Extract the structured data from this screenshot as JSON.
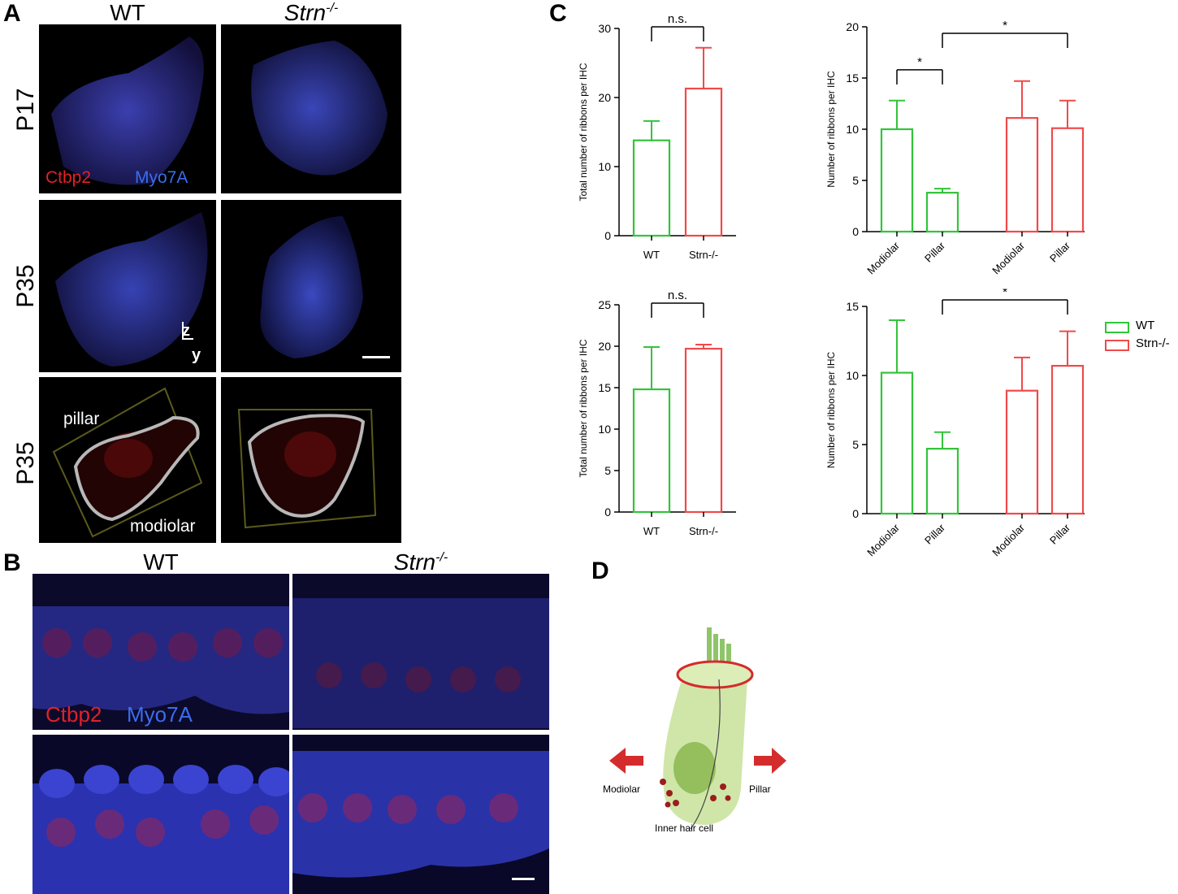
{
  "panels": {
    "a": "A",
    "b": "B",
    "c": "C",
    "d": "D"
  },
  "panelA": {
    "col_wt": "WT",
    "col_strn": "Strn",
    "col_strn_sup": "-/-",
    "rows": [
      "P17",
      "P35",
      "P35"
    ],
    "ctbp2": "Ctbp2",
    "myo7a": "Myo7A",
    "axis_z": "z",
    "axis_y": "y",
    "pillar": "pillar",
    "modiolar": "modiolar"
  },
  "panelB": {
    "col_wt": "WT",
    "col_strn": "Strn",
    "col_strn_sup": "-/-",
    "ctbp2": "Ctbp2",
    "myo7a": "Myo7A"
  },
  "panelD": {
    "modiolar": "Modiolar",
    "pillar": "Pillar",
    "cell": "Inner hair cell"
  },
  "legend": {
    "items": [
      {
        "label": "WT",
        "color": "#33c43a"
      },
      {
        "label": "Strn-/-",
        "color": "#f04a4a"
      }
    ]
  },
  "colors": {
    "wt": "#33c43a",
    "strn": "#f04a4a"
  },
  "chart_data": [
    {
      "type": "bar",
      "id": "c1",
      "ylabel": "Total number of ribbons per IHC",
      "categories": [
        "WT",
        "Strn-/-"
      ],
      "values": [
        13.8,
        21.3
      ],
      "errors": [
        2.8,
        5.9
      ],
      "ylim": [
        0,
        30
      ],
      "yticks": [
        0,
        10,
        20,
        30
      ],
      "series_colors": [
        "#33c43a",
        "#f04a4a"
      ],
      "significance": [
        {
          "from": 0,
          "to": 1,
          "label": "n.s."
        }
      ]
    },
    {
      "type": "bar",
      "id": "c2",
      "ylabel": "Number of ribbons per IHC",
      "categories": [
        "Modiolar",
        "Pillar",
        "Modiolar",
        "Pillar"
      ],
      "values": [
        10.0,
        3.8,
        11.1,
        10.1
      ],
      "errors": [
        2.8,
        0.4,
        3.6,
        2.7
      ],
      "ylim": [
        0,
        20
      ],
      "yticks": [
        0,
        5,
        10,
        15,
        20
      ],
      "series_colors": [
        "#33c43a",
        "#33c43a",
        "#f04a4a",
        "#f04a4a"
      ],
      "significance": [
        {
          "from": 0,
          "to": 1,
          "label": "*"
        },
        {
          "from": 1,
          "to": 3,
          "label": "*"
        }
      ]
    },
    {
      "type": "bar",
      "id": "c3",
      "ylabel": "Total number of ribbons per IHC",
      "categories": [
        "WT",
        "Strn-/-"
      ],
      "values": [
        14.8,
        19.7
      ],
      "errors": [
        5.1,
        0.5
      ],
      "ylim": [
        0,
        25
      ],
      "yticks": [
        0,
        5,
        10,
        15,
        20,
        25
      ],
      "series_colors": [
        "#33c43a",
        "#f04a4a"
      ],
      "significance": [
        {
          "from": 0,
          "to": 1,
          "label": "n.s."
        }
      ]
    },
    {
      "type": "bar",
      "id": "c4",
      "ylabel": "Number of ribbons per IHC",
      "categories": [
        "Modiolar",
        "Pillar",
        "Modiolar",
        "Pillar"
      ],
      "values": [
        10.2,
        4.7,
        8.9,
        10.7
      ],
      "errors": [
        3.8,
        1.2,
        2.4,
        2.5
      ],
      "ylim": [
        0,
        15
      ],
      "yticks": [
        0,
        5,
        10,
        15
      ],
      "series_colors": [
        "#33c43a",
        "#33c43a",
        "#f04a4a",
        "#f04a4a"
      ],
      "significance": [
        {
          "from": 1,
          "to": 3,
          "label": "*"
        }
      ]
    }
  ]
}
